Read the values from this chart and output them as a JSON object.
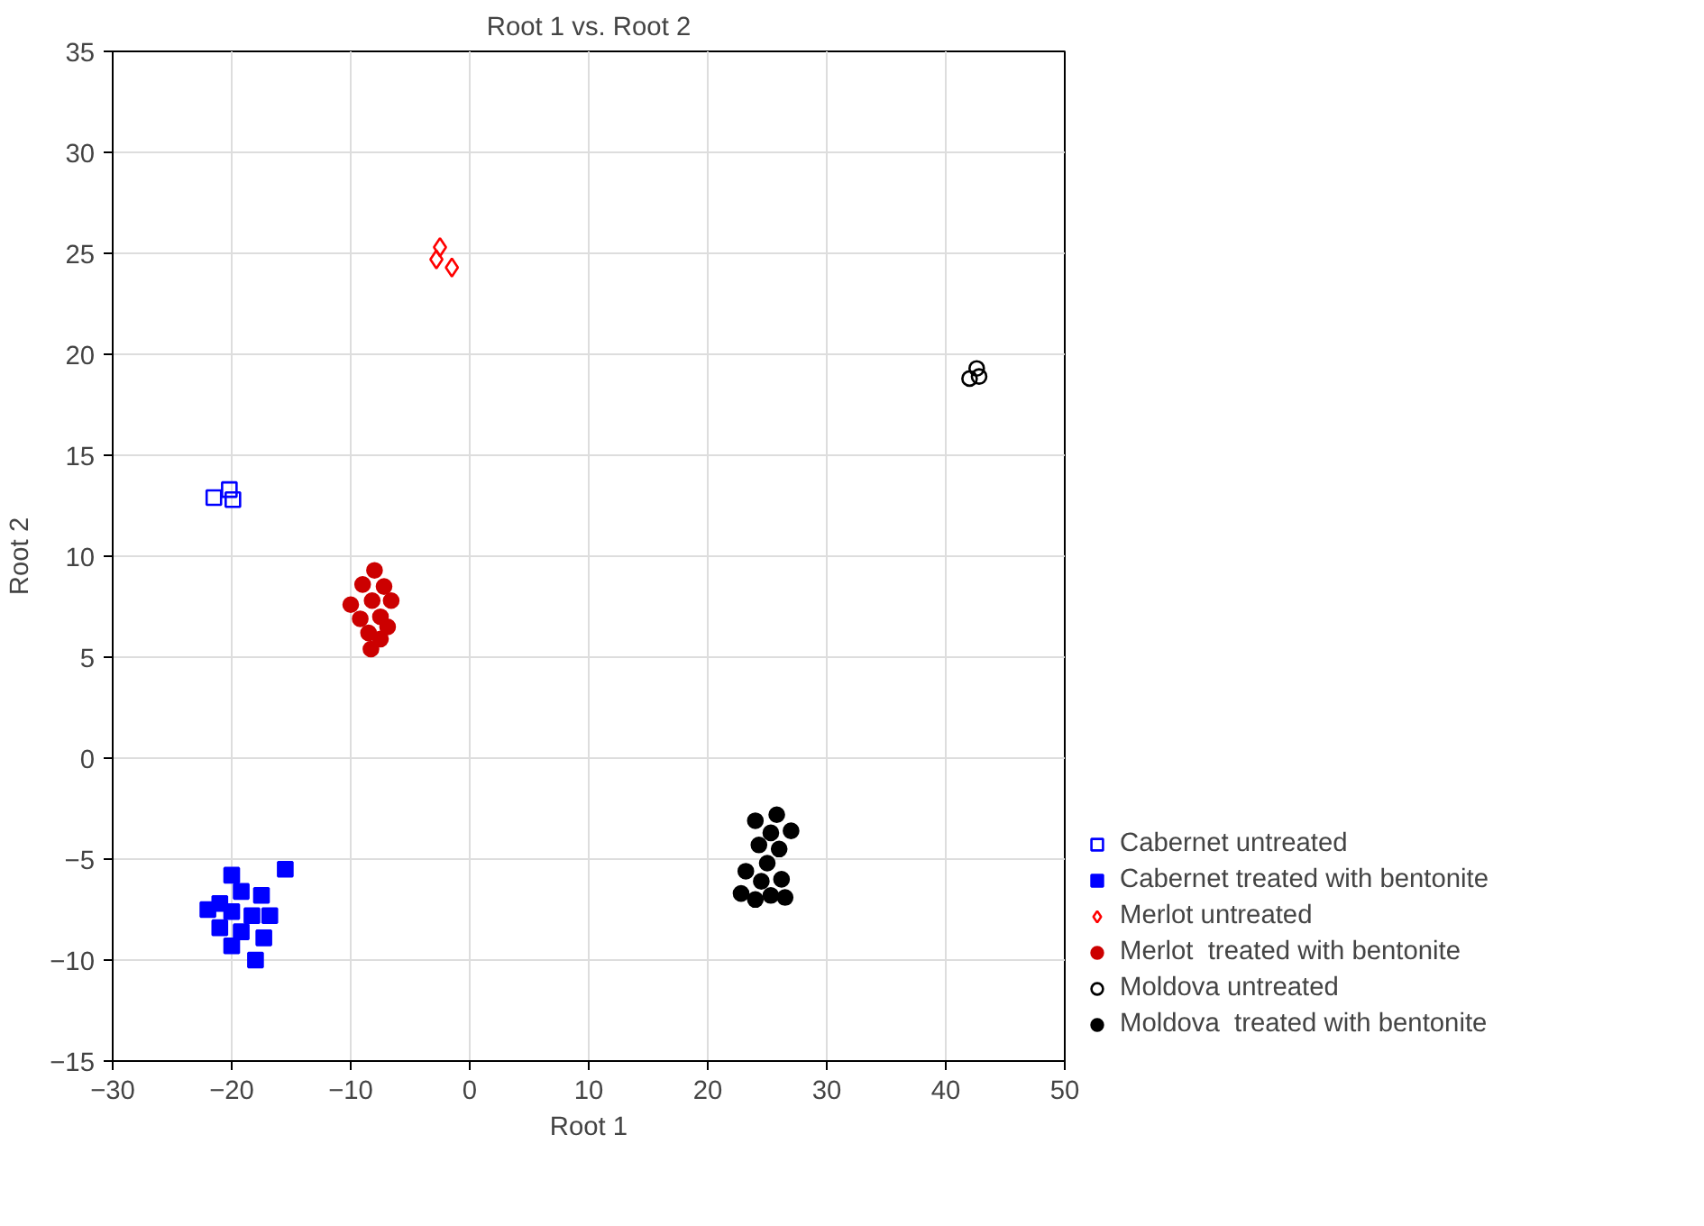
{
  "chart_data": {
    "type": "scatter",
    "title": "Root 1 vs. Root 2",
    "xlabel": "Root 1",
    "ylabel": "Root 2",
    "xlim": [
      -30,
      50
    ],
    "xticks": [
      -30,
      -20,
      -10,
      0,
      10,
      20,
      30,
      40,
      50
    ],
    "ylim": [
      -15,
      35
    ],
    "yticks": [
      -15,
      -10,
      -5,
      0,
      5,
      10,
      15,
      20,
      25,
      30,
      35
    ],
    "grid": true,
    "legend": "right",
    "series": [
      {
        "name": "Cabernet untreated",
        "color": "#0000ff",
        "marker": "square-open",
        "x": [
          -21.5,
          -20.2,
          -19.9
        ],
        "values": [
          12.9,
          13.3,
          12.8
        ]
      },
      {
        "name": "Cabernet treated with bentonite",
        "color": "#0000ff",
        "marker": "square",
        "x": [
          -15.5,
          -20,
          -19.2,
          -21,
          -17.5,
          -22,
          -20,
          -18.3,
          -16.8,
          -21,
          -19.2,
          -17.3,
          -20,
          -18
        ],
        "values": [
          -5.5,
          -5.8,
          -6.6,
          -7.2,
          -6.8,
          -7.5,
          -7.6,
          -7.8,
          -7.8,
          -8.4,
          -8.6,
          -8.9,
          -9.3,
          -10
        ]
      },
      {
        "name": "Merlot untreated",
        "color": "#ff0000",
        "marker": "diamond-open",
        "x": [
          -2.5,
          -2.8,
          -1.5
        ],
        "values": [
          25.3,
          24.7,
          24.3
        ]
      },
      {
        "name": "Merlot  treated with bentonite",
        "color": "#cc0000",
        "marker": "circle",
        "x": [
          -8,
          -9,
          -7.2,
          -10,
          -8.2,
          -6.6,
          -9.2,
          -7.5,
          -8.5,
          -6.9,
          -8.3,
          -7.5
        ],
        "values": [
          9.3,
          8.6,
          8.5,
          7.6,
          7.8,
          7.8,
          6.9,
          7,
          6.2,
          6.5,
          5.4,
          5.9
        ]
      },
      {
        "name": "Moldova untreated",
        "color": "#000000",
        "marker": "circle-open",
        "x": [
          42,
          42.6,
          42.8
        ],
        "values": [
          18.8,
          19.3,
          18.9
        ]
      },
      {
        "name": "Moldova  treated with bentonite",
        "color": "#000000",
        "marker": "circle",
        "x": [
          25.8,
          24,
          27,
          25.3,
          24.3,
          26,
          25,
          23.2,
          24.5,
          26.2,
          22.8,
          25.3,
          26.5,
          24
        ],
        "values": [
          -2.8,
          -3.1,
          -3.6,
          -3.7,
          -4.3,
          -4.5,
          -5.2,
          -5.6,
          -6.1,
          -6,
          -6.7,
          -6.8,
          -6.9,
          -7
        ]
      }
    ]
  }
}
